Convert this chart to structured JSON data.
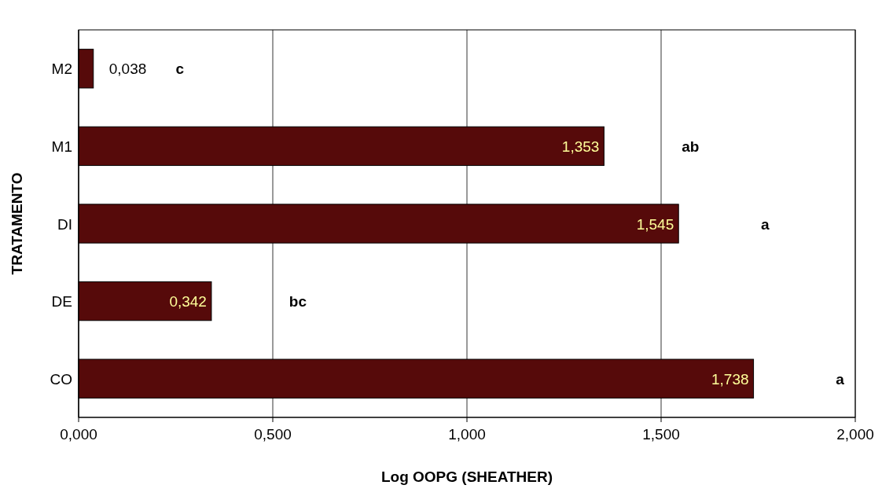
{
  "chart_data": {
    "type": "bar",
    "orientation": "horizontal",
    "xlabel": "Log OOPG (SHEATHER)",
    "ylabel": "TRATAMENTO",
    "categories": [
      "M2",
      "M1",
      "DI",
      "DE",
      "CO"
    ],
    "values": [
      0.038,
      1.353,
      1.545,
      0.342,
      1.738
    ],
    "value_labels": [
      "0,038",
      "1,353",
      "1,545",
      "0,342",
      "1,738"
    ],
    "color": "#560a0a",
    "xlim": [
      0,
      2
    ],
    "xticks": [
      {
        "value": 0,
        "label": "0,000"
      },
      {
        "value": 0.5,
        "label": "0,500"
      },
      {
        "value": 1,
        "label": "1,000"
      },
      {
        "value": 1.5,
        "label": "1,500"
      },
      {
        "value": 2,
        "label": "2,000"
      }
    ],
    "grid": "x",
    "annotations": [
      "c",
      "ab",
      "a",
      "bc",
      "a"
    ]
  }
}
